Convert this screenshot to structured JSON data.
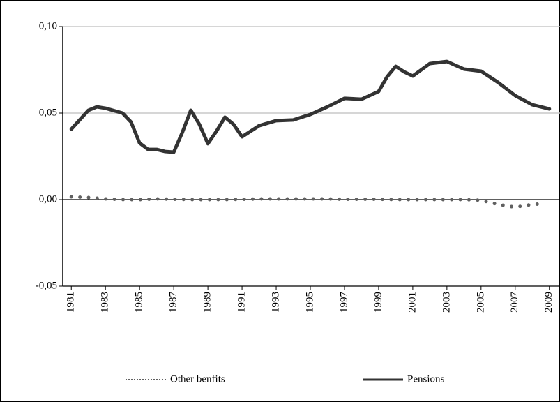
{
  "chart_data": {
    "type": "line",
    "series": [
      {
        "name": "Other benfits",
        "color": "#606060",
        "line_style": "dotted",
        "x": [
          1981,
          1982,
          1983,
          1984,
          1985,
          1986,
          1987,
          1988,
          1989,
          1990,
          1991,
          1992,
          1993,
          1994,
          1995,
          1996,
          1997,
          1998,
          1999,
          2000,
          2001,
          2002,
          2003,
          2004,
          2005,
          2006,
          2007,
          2008,
          2008.6
        ],
        "values": [
          0.0016,
          0.0012,
          0.0004,
          0,
          0,
          0.0004,
          0.0002,
          0,
          0,
          0,
          0.0002,
          0.0004,
          0.0004,
          0.0004,
          0.0004,
          0.0004,
          0.0002,
          0.0002,
          0.0002,
          0,
          0,
          0,
          0,
          0,
          -0.0004,
          -0.0028,
          -0.0044,
          -0.0028,
          -0.0024
        ]
      },
      {
        "name": "Pensions",
        "color": "#333333",
        "line_style": "solid",
        "x": [
          1981,
          1982,
          1982.5,
          1983,
          1984,
          1984.5,
          1985,
          1985.5,
          1986,
          1986.5,
          1987,
          1987.5,
          1988,
          1988.5,
          1989,
          1989.5,
          1990,
          1990.5,
          1991,
          1992,
          1993,
          1994,
          1995,
          1996,
          1997,
          1998,
          1999,
          1999.5,
          2000,
          2000.5,
          2001,
          2001.5,
          2002,
          2003,
          2004,
          2005,
          2006,
          2007,
          2008,
          2009
        ],
        "values": [
          0.0407,
          0.0516,
          0.0536,
          0.0528,
          0.05,
          0.0448,
          0.0327,
          0.029,
          0.029,
          0.0278,
          0.0274,
          0.0387,
          0.0516,
          0.0435,
          0.0323,
          0.0395,
          0.0476,
          0.0435,
          0.0363,
          0.0427,
          0.0456,
          0.046,
          0.0492,
          0.0536,
          0.0585,
          0.058,
          0.0625,
          0.071,
          0.077,
          0.0738,
          0.0714,
          0.075,
          0.0786,
          0.0798,
          0.0754,
          0.0742,
          0.0677,
          0.0601,
          0.0548,
          0.0524
        ]
      }
    ],
    "xlim": [
      1980.5,
      2009.5
    ],
    "xticks": [
      1981,
      1983,
      1985,
      1987,
      1989,
      1991,
      1993,
      1995,
      1997,
      1999,
      2001,
      2003,
      2005,
      2007,
      2009
    ],
    "ylim": [
      -0.05,
      0.1
    ],
    "yticks": [
      {
        "value": -0.05,
        "label": "-0,05"
      },
      {
        "value": 0,
        "label": "0,00"
      },
      {
        "value": 0.05,
        "label": "0,05"
      },
      {
        "value": 0.1,
        "label": "0,10"
      }
    ],
    "grid": true,
    "legend": "bottom"
  }
}
